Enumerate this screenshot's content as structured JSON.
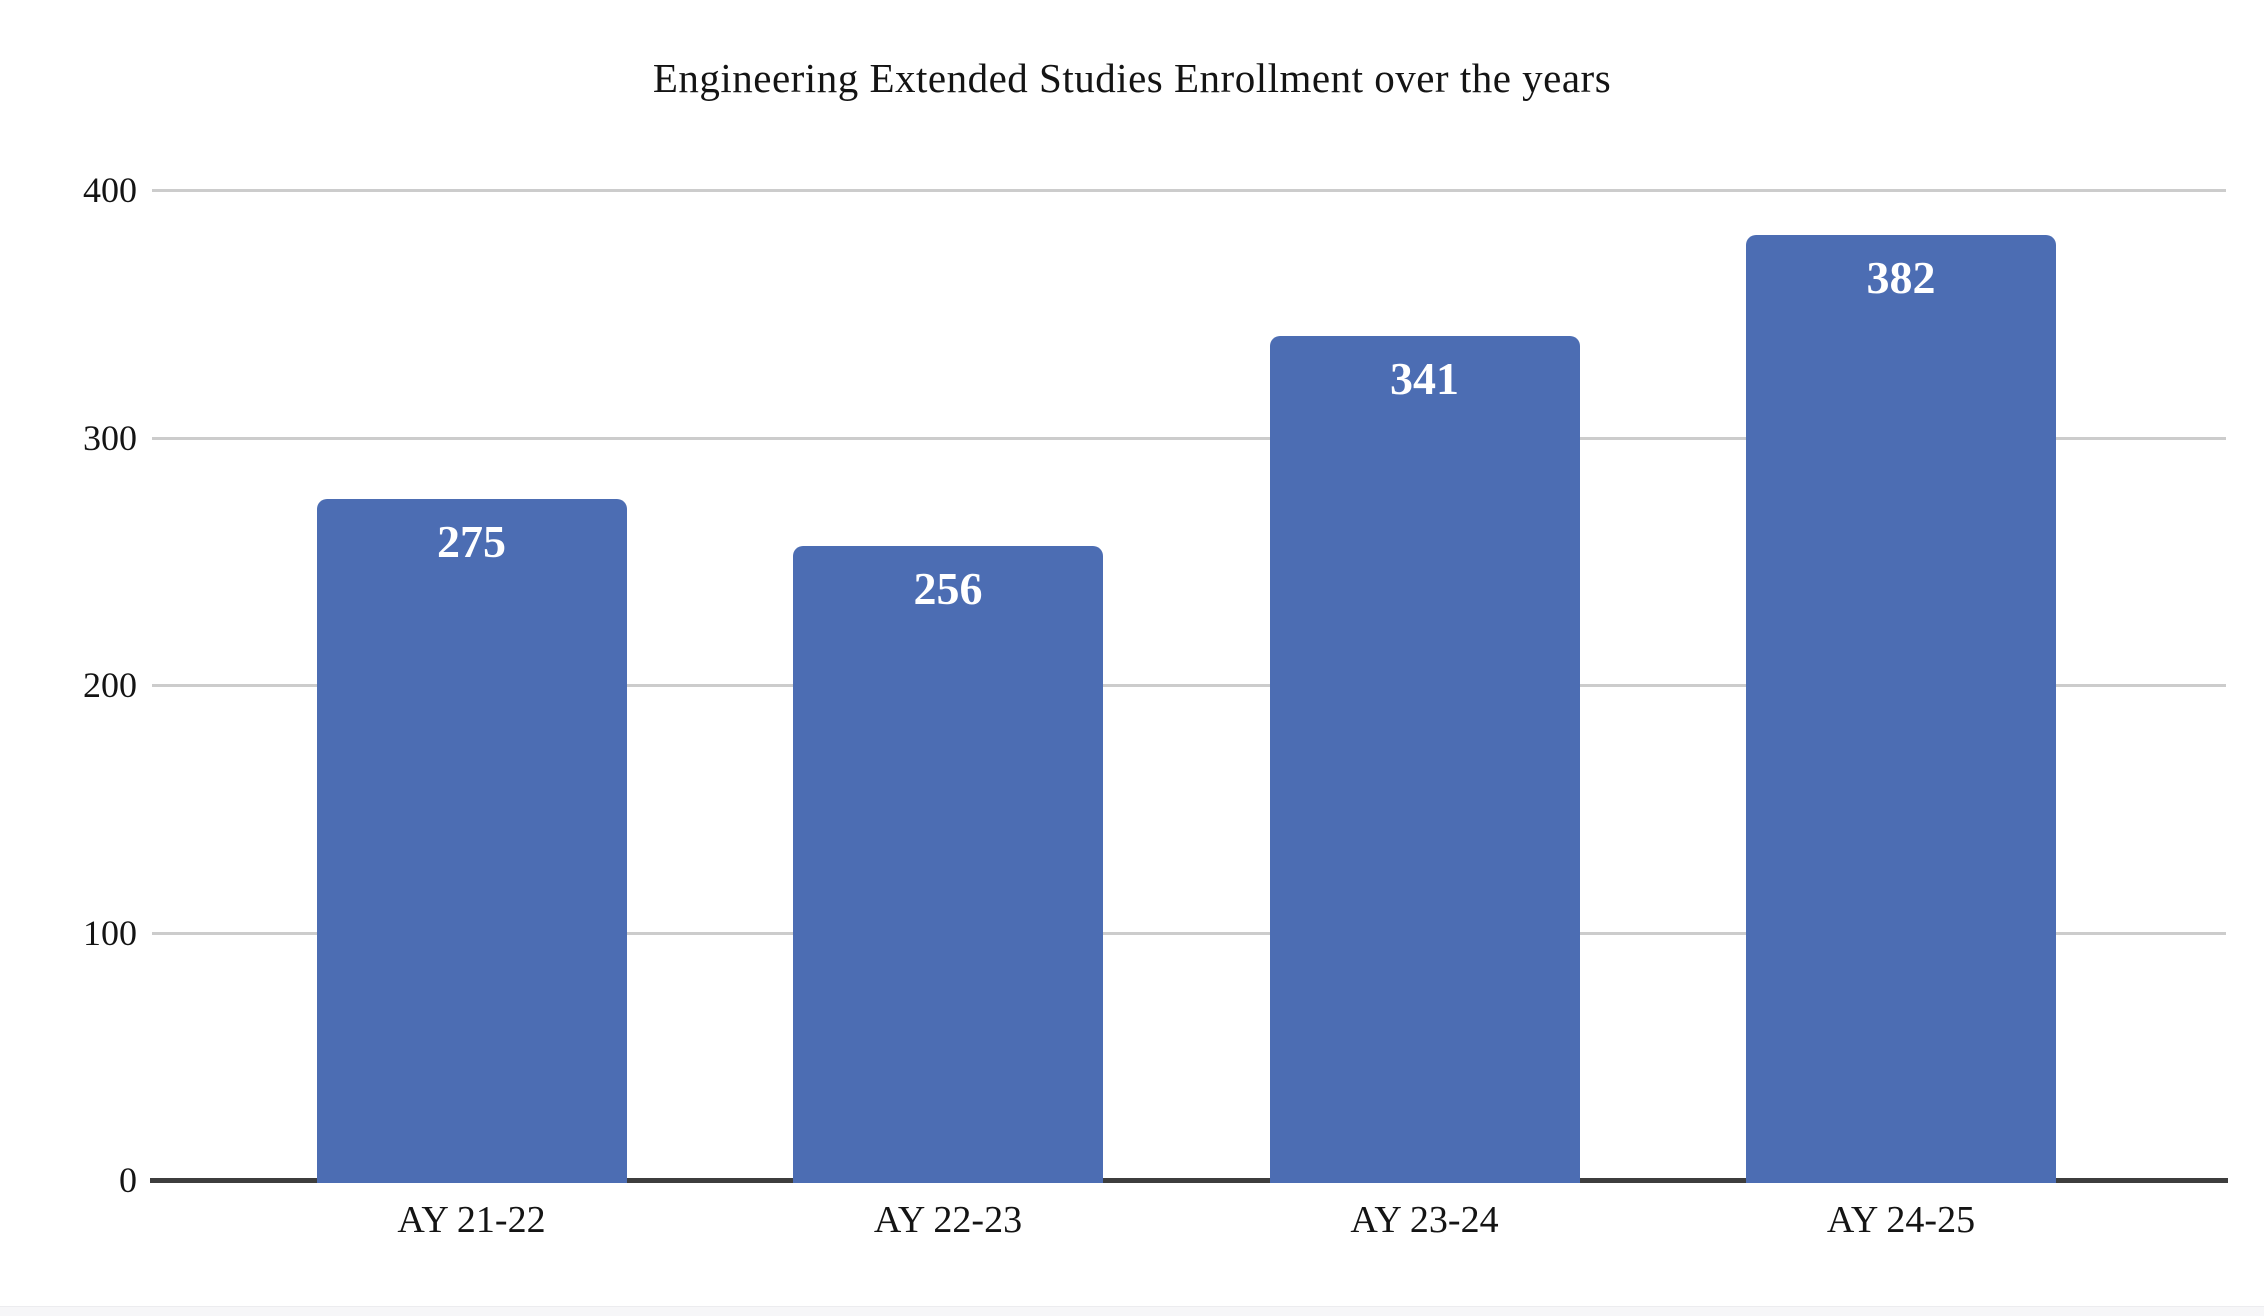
{
  "page": {
    "background_color": "#ffffff",
    "bottom_strip_color": "#f6f6f8"
  },
  "chart_data": {
    "type": "bar",
    "title": "Engineering Extended Studies Enrollment over the years",
    "categories": [
      "AY 21-22",
      "AY 22-23",
      "AY 23-24",
      "AY 24-25"
    ],
    "values": [
      275,
      256,
      341,
      382
    ],
    "value_labels": [
      "275",
      "256",
      "341",
      "382"
    ],
    "xlabel": "",
    "ylabel": "",
    "ylim": [
      0,
      400
    ],
    "yticks": [
      0,
      100,
      200,
      300,
      400
    ],
    "grid": true,
    "legend_position": "none",
    "bar_color": "#4C6DB3",
    "value_label_color": "#ffffff",
    "gridline_color": "#cccccc",
    "axis_line_color": "#3d3d3d",
    "text_color": "#141414"
  }
}
